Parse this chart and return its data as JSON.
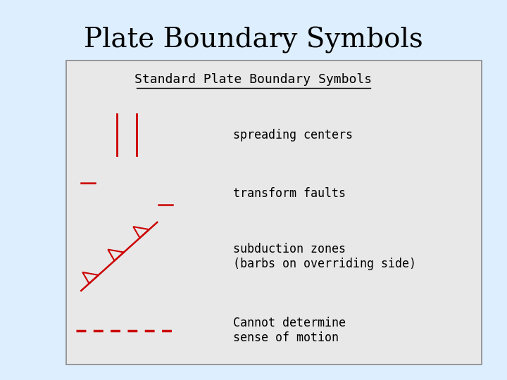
{
  "title": "Plate Boundary Symbols",
  "subtitle": "Standard Plate Boundary Symbols",
  "bg_color": "#e8e8e8",
  "outer_bg": "#ddeeff",
  "symbol_color": "#cc0000",
  "text_color": "#000000",
  "title_fontsize": 28,
  "subtitle_fontsize": 13,
  "label_fontsize": 12,
  "labels": [
    "spreading centers",
    "transform faults",
    "subduction zones\n(barbs on overriding side)",
    "Cannot determine\nsense of motion"
  ]
}
